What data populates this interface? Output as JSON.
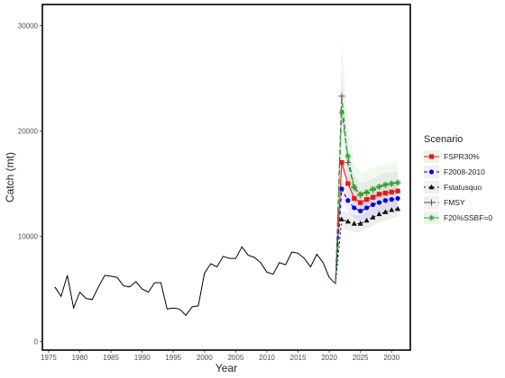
{
  "chart_data": {
    "type": "line",
    "title": "",
    "xlabel": "Year",
    "ylabel": "Catch (mt)",
    "xlim": [
      1974,
      2033
    ],
    "ylim": [
      -800,
      32000
    ],
    "x_ticks": [
      1975,
      1980,
      1985,
      1990,
      1995,
      2000,
      2005,
      2010,
      2015,
      2020,
      2025,
      2030
    ],
    "y_ticks": [
      0,
      10000,
      20000,
      30000
    ],
    "grid": false,
    "legend": {
      "title": "Scenario",
      "position": "right"
    },
    "historical": {
      "x": [
        1976,
        1977,
        1978,
        1979,
        1980,
        1981,
        1982,
        1983,
        1984,
        1985,
        1986,
        1987,
        1988,
        1989,
        1990,
        1991,
        1992,
        1993,
        1994,
        1995,
        1996,
        1997,
        1998,
        1999,
        2000,
        2001,
        2002,
        2003,
        2004,
        2005,
        2006,
        2007,
        2008,
        2009,
        2010,
        2011,
        2012,
        2013,
        2014,
        2015,
        2016,
        2017,
        2018,
        2019,
        2020,
        2021
      ],
      "y": [
        5200,
        4300,
        6300,
        3200,
        4700,
        4100,
        4000,
        5200,
        6300,
        6200,
        6100,
        5300,
        5200,
        5700,
        5000,
        4700,
        5600,
        5600,
        3100,
        3200,
        3100,
        2500,
        3300,
        3400,
        6500,
        7400,
        7100,
        8100,
        7900,
        7900,
        9000,
        8200,
        8000,
        7500,
        6600,
        6400,
        7500,
        7300,
        8500,
        8400,
        7900,
        7100,
        8300,
        7500,
        6100,
        5500
      ]
    },
    "series": [
      {
        "name": "FSPR30%",
        "color": "#e41a1c",
        "marker": "square",
        "dash": "solid",
        "x": [
          2022,
          2023,
          2024,
          2025,
          2026,
          2027,
          2028,
          2029,
          2030,
          2031
        ],
        "y": [
          17000,
          15000,
          13600,
          13200,
          13500,
          13700,
          14000,
          14100,
          14200,
          14300
        ],
        "band": [
          [
            16000,
            18500
          ],
          [
            14000,
            16000
          ],
          [
            12600,
            14600
          ],
          [
            12200,
            14200
          ],
          [
            12500,
            14500
          ],
          [
            12700,
            14700
          ],
          [
            13000,
            15000
          ],
          [
            13100,
            15100
          ],
          [
            13200,
            15200
          ],
          [
            13300,
            15300
          ]
        ]
      },
      {
        "name": "F2008-2010",
        "color": "#0000ee",
        "marker": "circle",
        "dash": "4,3",
        "x": [
          2022,
          2023,
          2024,
          2025,
          2026,
          2027,
          2028,
          2029,
          2030,
          2031
        ],
        "y": [
          14500,
          13400,
          12700,
          12400,
          12700,
          13000,
          13200,
          13400,
          13500,
          13600
        ],
        "band": [
          [
            13500,
            15500
          ],
          [
            12400,
            14400
          ],
          [
            11700,
            13700
          ],
          [
            11400,
            13400
          ],
          [
            11700,
            13700
          ],
          [
            12000,
            14000
          ],
          [
            12200,
            14200
          ],
          [
            12400,
            14400
          ],
          [
            12500,
            14500
          ],
          [
            12600,
            14600
          ]
        ]
      },
      {
        "name": "Fstatusquo",
        "color": "#111111",
        "marker": "triangle",
        "dash": "2,3",
        "x": [
          2022,
          2023,
          2024,
          2025,
          2026,
          2027,
          2028,
          2029,
          2030,
          2031
        ],
        "y": [
          11600,
          11400,
          11200,
          11200,
          11500,
          11800,
          12100,
          12300,
          12500,
          12600
        ],
        "band": [
          [
            10800,
            12400
          ],
          [
            10600,
            12200
          ],
          [
            10400,
            12000
          ],
          [
            10400,
            12000
          ],
          [
            10700,
            12300
          ],
          [
            11000,
            12600
          ],
          [
            11300,
            12900
          ],
          [
            11500,
            13100
          ],
          [
            11700,
            13300
          ],
          [
            11800,
            13400
          ]
        ]
      },
      {
        "name": "FMSY",
        "color": "#555555",
        "marker": "plus",
        "dash": "5,3",
        "x": [
          2022,
          2023,
          2024,
          2025,
          2026,
          2027,
          2028,
          2029,
          2030,
          2031
        ],
        "y": [
          23300,
          17000,
          14600,
          13900,
          14100,
          14400,
          14700,
          14900,
          15000,
          15100
        ],
        "band": [
          [
            21000,
            25500
          ],
          [
            15500,
            18500
          ],
          [
            13400,
            15800
          ],
          [
            12800,
            15000
          ],
          [
            13000,
            15200
          ],
          [
            13300,
            15500
          ],
          [
            13600,
            15800
          ],
          [
            13800,
            16000
          ],
          [
            13900,
            16100
          ],
          [
            14000,
            16200
          ]
        ]
      },
      {
        "name": "F20%SSBF=0",
        "color": "#22aa22",
        "marker": "star",
        "dash": "6,2,1,2",
        "x": [
          2022,
          2023,
          2024,
          2025,
          2026,
          2027,
          2028,
          2029,
          2030,
          2031
        ],
        "y": [
          21800,
          17600,
          14700,
          14000,
          14200,
          14500,
          14700,
          14900,
          15000,
          15100
        ],
        "band": [
          [
            19000,
            28500
          ],
          [
            15500,
            21000
          ],
          [
            13200,
            17000
          ],
          [
            12500,
            16000
          ],
          [
            12700,
            16200
          ],
          [
            13000,
            16500
          ],
          [
            13200,
            16700
          ],
          [
            13400,
            16900
          ],
          [
            13500,
            17000
          ],
          [
            13600,
            17100
          ]
        ]
      }
    ]
  }
}
